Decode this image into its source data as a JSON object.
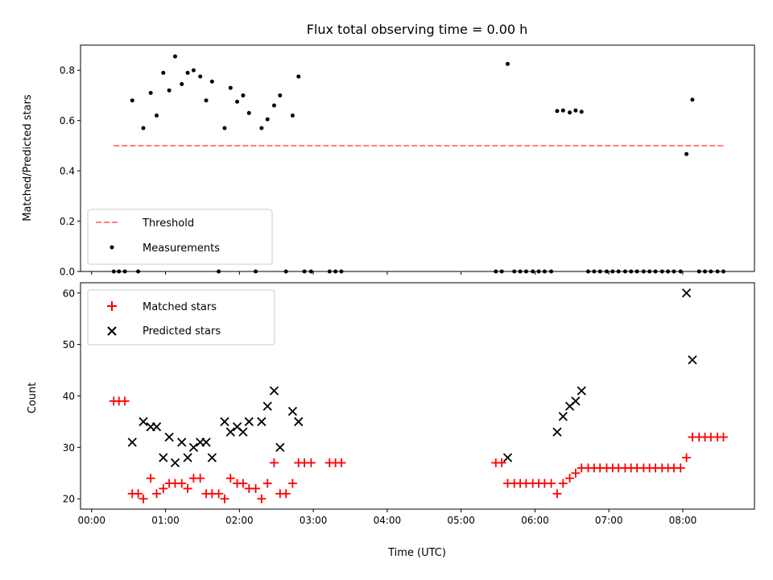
{
  "chart_data": [
    {
      "type": "scatter",
      "title": "Flux total observing time = 0.00 h",
      "ylabel": "Matched/Predicted stars",
      "xlabel": "",
      "xlim": [
        -0.15,
        8.97
      ],
      "ylim": [
        0.0,
        0.9
      ],
      "yticks": [
        0.0,
        0.2,
        0.4,
        0.6,
        0.8
      ],
      "ytick_labels": [
        "0.0",
        "0.2",
        "0.4",
        "0.6",
        "0.8"
      ],
      "xticks": [
        0,
        1,
        2,
        3,
        4,
        5,
        6,
        7,
        8
      ],
      "xtick_labels": [
        "",
        "",
        "",
        "",
        "",
        "",
        "",
        "",
        ""
      ],
      "legend_position": "lower-left",
      "series": [
        {
          "name": "Threshold",
          "kind": "line",
          "style": "dashed",
          "color": "#ff7f7f",
          "x": [
            0.3,
            8.57
          ],
          "y": [
            0.5,
            0.5
          ]
        },
        {
          "name": "Measurements",
          "kind": "dot",
          "color": "#000000",
          "points": [
            [
              0.3,
              0.0
            ],
            [
              0.37,
              0.0
            ],
            [
              0.45,
              0.0
            ],
            [
              0.55,
              0.68
            ],
            [
              0.63,
              0.0
            ],
            [
              0.7,
              0.57
            ],
            [
              0.8,
              0.71
            ],
            [
              0.88,
              0.62
            ],
            [
              0.97,
              0.79
            ],
            [
              1.05,
              0.72
            ],
            [
              1.13,
              0.855
            ],
            [
              1.22,
              0.745
            ],
            [
              1.3,
              0.79
            ],
            [
              1.38,
              0.8
            ],
            [
              1.47,
              0.775
            ],
            [
              1.55,
              0.68
            ],
            [
              1.63,
              0.755
            ],
            [
              1.72,
              0.0
            ],
            [
              1.8,
              0.57
            ],
            [
              1.88,
              0.73
            ],
            [
              1.97,
              0.675
            ],
            [
              2.05,
              0.7
            ],
            [
              2.13,
              0.63
            ],
            [
              2.22,
              0.0
            ],
            [
              2.3,
              0.57
            ],
            [
              2.38,
              0.605
            ],
            [
              2.47,
              0.66
            ],
            [
              2.55,
              0.7
            ],
            [
              2.63,
              0.0
            ],
            [
              2.72,
              0.62
            ],
            [
              2.8,
              0.775
            ],
            [
              2.88,
              0.0
            ],
            [
              2.97,
              0.0
            ],
            [
              3.22,
              0.0
            ],
            [
              3.3,
              0.0
            ],
            [
              3.38,
              0.0
            ],
            [
              5.47,
              0.0
            ],
            [
              5.55,
              0.0
            ],
            [
              5.63,
              0.825
            ],
            [
              5.72,
              0.0
            ],
            [
              5.8,
              0.0
            ],
            [
              5.88,
              0.0
            ],
            [
              5.97,
              0.0
            ],
            [
              6.05,
              0.0
            ],
            [
              6.13,
              0.0
            ],
            [
              6.22,
              0.0
            ],
            [
              6.3,
              0.638
            ],
            [
              6.38,
              0.64
            ],
            [
              6.47,
              0.632
            ],
            [
              6.55,
              0.64
            ],
            [
              6.63,
              0.635
            ],
            [
              6.72,
              0.0
            ],
            [
              6.8,
              0.0
            ],
            [
              6.88,
              0.0
            ],
            [
              6.97,
              0.0
            ],
            [
              7.05,
              0.0
            ],
            [
              7.13,
              0.0
            ],
            [
              7.22,
              0.0
            ],
            [
              7.3,
              0.0
            ],
            [
              7.38,
              0.0
            ],
            [
              7.47,
              0.0
            ],
            [
              7.55,
              0.0
            ],
            [
              7.63,
              0.0
            ],
            [
              7.72,
              0.0
            ],
            [
              7.8,
              0.0
            ],
            [
              7.88,
              0.0
            ],
            [
              7.97,
              0.0
            ],
            [
              8.05,
              0.467
            ],
            [
              8.13,
              0.683
            ],
            [
              8.22,
              0.0
            ],
            [
              8.3,
              0.0
            ],
            [
              8.38,
              0.0
            ],
            [
              8.47,
              0.0
            ],
            [
              8.55,
              0.0
            ]
          ]
        }
      ]
    },
    {
      "type": "scatter",
      "title": "",
      "ylabel": "Count",
      "xlabel": "Time (UTC)",
      "xlim": [
        -0.15,
        8.97
      ],
      "ylim": [
        18.0,
        62.0
      ],
      "yticks": [
        20,
        30,
        40,
        50,
        60
      ],
      "ytick_labels": [
        "20",
        "30",
        "40",
        "50",
        "60"
      ],
      "xticks": [
        0,
        1,
        2,
        3,
        4,
        5,
        6,
        7,
        8
      ],
      "xtick_labels": [
        "00:00",
        "01:00",
        "02:00",
        "03:00",
        "04:00",
        "05:00",
        "06:00",
        "07:00",
        "08:00"
      ],
      "legend_position": "upper-left",
      "series": [
        {
          "name": "Matched stars",
          "kind": "plus",
          "color": "#ff0000",
          "points": [
            [
              0.3,
              39
            ],
            [
              0.37,
              39
            ],
            [
              0.45,
              39
            ],
            [
              0.55,
              21
            ],
            [
              0.63,
              21
            ],
            [
              0.7,
              20
            ],
            [
              0.8,
              24
            ],
            [
              0.88,
              21
            ],
            [
              0.97,
              22
            ],
            [
              1.05,
              23
            ],
            [
              1.13,
              23
            ],
            [
              1.22,
              23
            ],
            [
              1.3,
              22
            ],
            [
              1.38,
              24
            ],
            [
              1.47,
              24
            ],
            [
              1.55,
              21
            ],
            [
              1.63,
              21
            ],
            [
              1.72,
              21
            ],
            [
              1.8,
              20
            ],
            [
              1.88,
              24
            ],
            [
              1.97,
              23
            ],
            [
              2.05,
              23
            ],
            [
              2.13,
              22
            ],
            [
              2.22,
              22
            ],
            [
              2.3,
              20
            ],
            [
              2.38,
              23
            ],
            [
              2.47,
              27
            ],
            [
              2.55,
              21
            ],
            [
              2.63,
              21
            ],
            [
              2.72,
              23
            ],
            [
              2.8,
              27
            ],
            [
              2.88,
              27
            ],
            [
              2.97,
              27
            ],
            [
              3.22,
              27
            ],
            [
              3.3,
              27
            ],
            [
              3.38,
              27
            ],
            [
              5.47,
              27
            ],
            [
              5.55,
              27
            ],
            [
              5.63,
              23
            ],
            [
              5.72,
              23
            ],
            [
              5.8,
              23
            ],
            [
              5.88,
              23
            ],
            [
              5.97,
              23
            ],
            [
              6.05,
              23
            ],
            [
              6.13,
              23
            ],
            [
              6.22,
              23
            ],
            [
              6.3,
              21
            ],
            [
              6.38,
              23
            ],
            [
              6.47,
              24
            ],
            [
              6.55,
              25
            ],
            [
              6.63,
              26
            ],
            [
              6.72,
              26
            ],
            [
              6.8,
              26
            ],
            [
              6.88,
              26
            ],
            [
              6.97,
              26
            ],
            [
              7.05,
              26
            ],
            [
              7.13,
              26
            ],
            [
              7.22,
              26
            ],
            [
              7.3,
              26
            ],
            [
              7.38,
              26
            ],
            [
              7.47,
              26
            ],
            [
              7.55,
              26
            ],
            [
              7.63,
              26
            ],
            [
              7.72,
              26
            ],
            [
              7.8,
              26
            ],
            [
              7.88,
              26
            ],
            [
              7.97,
              26
            ],
            [
              8.05,
              28
            ],
            [
              8.13,
              32
            ],
            [
              8.22,
              32
            ],
            [
              8.3,
              32
            ],
            [
              8.38,
              32
            ],
            [
              8.47,
              32
            ],
            [
              8.55,
              32
            ]
          ]
        },
        {
          "name": "Predicted stars",
          "kind": "cross",
          "color": "#000000",
          "points": [
            [
              0.55,
              31
            ],
            [
              0.7,
              35
            ],
            [
              0.8,
              34
            ],
            [
              0.88,
              34
            ],
            [
              0.97,
              28
            ],
            [
              1.05,
              32
            ],
            [
              1.13,
              27
            ],
            [
              1.22,
              31
            ],
            [
              1.3,
              28
            ],
            [
              1.38,
              30
            ],
            [
              1.47,
              31
            ],
            [
              1.55,
              31
            ],
            [
              1.63,
              28
            ],
            [
              1.8,
              35
            ],
            [
              1.88,
              33
            ],
            [
              1.97,
              34
            ],
            [
              2.05,
              33
            ],
            [
              2.13,
              35
            ],
            [
              2.3,
              35
            ],
            [
              2.38,
              38
            ],
            [
              2.47,
              41
            ],
            [
              2.55,
              30
            ],
            [
              2.72,
              37
            ],
            [
              2.8,
              35
            ],
            [
              5.63,
              28
            ],
            [
              6.3,
              33
            ],
            [
              6.38,
              36
            ],
            [
              6.47,
              38
            ],
            [
              6.55,
              39
            ],
            [
              6.63,
              41
            ],
            [
              8.05,
              60
            ],
            [
              8.13,
              47
            ]
          ]
        }
      ]
    }
  ]
}
